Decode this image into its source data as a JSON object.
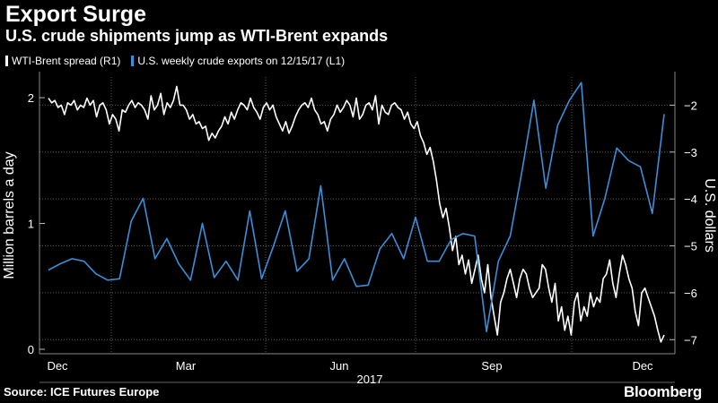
{
  "title": "Export Surge",
  "subtitle": "U.S. crude shipments jump as WTI-Brent expands",
  "source": "Source: ICE Futures Europe",
  "brand": "Bloomberg",
  "chart_data": {
    "type": "line",
    "ylabel_left": "Million barrels a day",
    "ylabel_right": "U.S. dollars",
    "x_tick_labels": [
      "Dec",
      "Mar",
      "Jun",
      "Sep",
      "Dec"
    ],
    "year_label": "2017",
    "ylim_left": [
      0,
      2.2
    ],
    "yticks_left": [
      0,
      1,
      2
    ],
    "ylim_right": [
      -7.3,
      -1.4
    ],
    "yticks_right": [
      -2,
      -3,
      -4,
      -5,
      -6,
      -7
    ],
    "grid": true,
    "legend_position": "top-left",
    "series": [
      {
        "name": "WTI-Brent spread (R1)",
        "axis": "right",
        "color": "#ffffff",
        "values": [
          -1.85,
          -1.95,
          -1.9,
          -2.05,
          -2.0,
          -2.2,
          -1.95,
          -2.0,
          -1.9,
          -2.1,
          -2.0,
          -2.05,
          -1.85,
          -2.0,
          -1.9,
          -2.25,
          -2.0,
          -1.95,
          -2.1,
          -2.4,
          -2.2,
          -2.3,
          -2.55,
          -2.1,
          -2.15,
          -2.0,
          -1.9,
          -2.05,
          -1.95,
          -2.0,
          -2.1,
          -2.3,
          -1.8,
          -2.1,
          -2.0,
          -1.75,
          -2.2,
          -1.95,
          -2.05,
          -1.9,
          -1.6,
          -2.0,
          -2.0,
          -2.1,
          -2.3,
          -2.2,
          -2.4,
          -2.35,
          -2.5,
          -2.45,
          -2.75,
          -2.6,
          -2.7,
          -2.55,
          -2.45,
          -2.25,
          -2.4,
          -2.15,
          -2.3,
          -2.1,
          -1.95,
          -2.0,
          -2.1,
          -1.85,
          -2.05,
          -2.15,
          -2.3,
          -2.05,
          -1.95,
          -2.1,
          -2.0,
          -2.25,
          -2.4,
          -2.55,
          -2.35,
          -2.6,
          -2.45,
          -2.25,
          -2.1,
          -2.0,
          -1.95,
          -2.05,
          -1.85,
          -2.1,
          -2.2,
          -2.4,
          -2.35,
          -2.55,
          -2.3,
          -2.2,
          -2.0,
          -2.15,
          -2.05,
          -1.9,
          -2.0,
          -2.25,
          -1.85,
          -2.3,
          -2.2,
          -2.0,
          -1.95,
          -2.1,
          -1.8,
          -2.4,
          -2.0,
          -2.15,
          -2.2,
          -2.0,
          -1.95,
          -2.05,
          -2.1,
          -2.3,
          -2.15,
          -2.4,
          -2.5,
          -2.35,
          -2.65,
          -2.8,
          -3.05,
          -2.9,
          -3.2,
          -3.6,
          -4.1,
          -4.4,
          -4.2,
          -4.6,
          -5.1,
          -4.8,
          -5.4,
          -5.2,
          -5.6,
          -5.3,
          -5.8,
          -5.5,
          -5.2,
          -5.7,
          -6.0,
          -5.4,
          -6.1,
          -6.5,
          -6.9,
          -6.2,
          -6.0,
          -5.7,
          -5.5,
          -5.8,
          -6.1,
          -5.7,
          -5.5,
          -5.6,
          -5.9,
          -6.1,
          -6.0,
          -5.9,
          -5.4,
          -5.5,
          -5.9,
          -6.2,
          -5.8,
          -6.6,
          -6.3,
          -6.8,
          -6.5,
          -6.9,
          -6.2,
          -6.0,
          -6.6,
          -6.3,
          -6.5,
          -6.0,
          -6.3,
          -6.1,
          -6.2,
          -5.7,
          -5.6,
          -5.3,
          -5.8,
          -6.1,
          -5.6,
          -5.2,
          -5.4,
          -5.7,
          -5.9,
          -6.4,
          -6.7,
          -6.0,
          -5.9,
          -6.1,
          -6.3,
          -6.5,
          -6.8,
          -7.05,
          -6.9
        ]
      },
      {
        "name": "U.S. weekly crude exports on 12/15/17 (L1)",
        "axis": "left",
        "color": "#3b8ed8",
        "values": [
          0.63,
          0.68,
          0.72,
          0.7,
          0.6,
          0.55,
          0.56,
          1.02,
          1.2,
          0.72,
          0.88,
          0.68,
          0.55,
          1.0,
          0.57,
          0.7,
          0.55,
          1.1,
          0.56,
          0.82,
          1.1,
          0.62,
          0.72,
          1.3,
          0.55,
          0.72,
          0.5,
          0.51,
          0.8,
          0.92,
          0.72,
          1.05,
          0.7,
          0.7,
          0.87,
          0.92,
          0.9,
          0.14,
          0.7,
          0.9,
          1.42,
          1.98,
          1.28,
          1.78,
          1.98,
          2.12,
          0.9,
          1.2,
          1.6,
          1.5,
          1.45,
          1.08,
          1.87
        ]
      }
    ]
  }
}
